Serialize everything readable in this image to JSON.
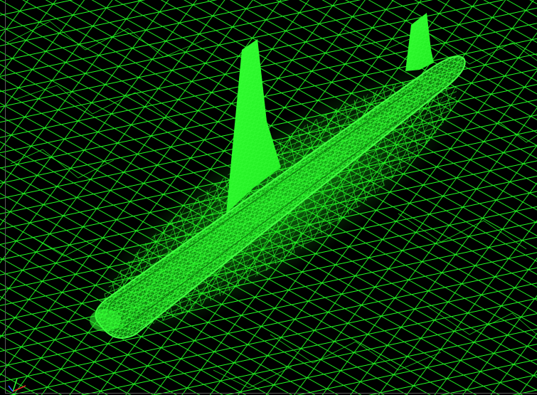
{
  "viewport": {
    "background_color": "#000000",
    "mesh_color": "#22ff22",
    "mesh_dense_color": "#33ff33",
    "surface_color": "#28ff28"
  },
  "model": {
    "type": "aircraft-fuselage-with-fins",
    "render_mode": "wireframe-surface-mesh"
  },
  "axis_triad": {
    "icon": "axis-triad-icon",
    "x_color": "#ff3030",
    "y_color": "#30ff30",
    "z_color": "#3060ff"
  }
}
